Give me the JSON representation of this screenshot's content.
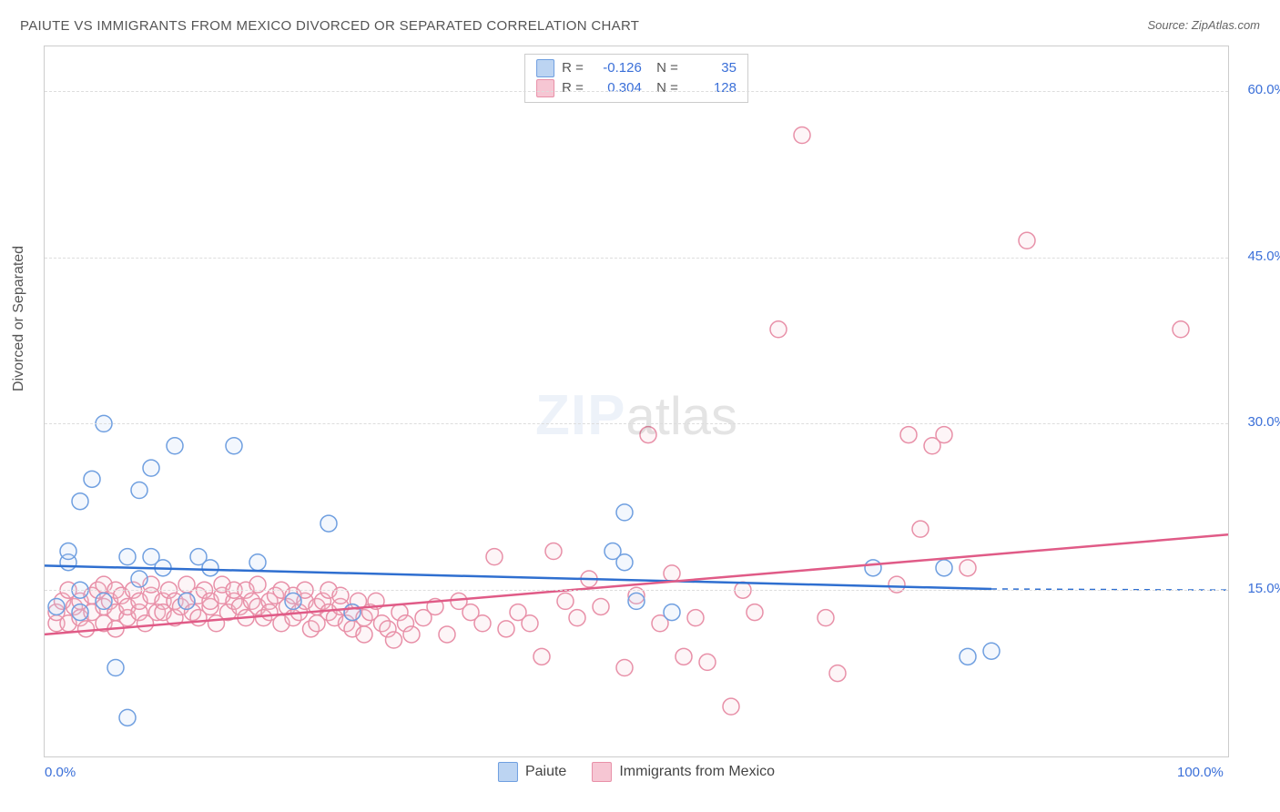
{
  "header": {
    "title": "PAIUTE VS IMMIGRANTS FROM MEXICO DIVORCED OR SEPARATED CORRELATION CHART",
    "source": "Source: ZipAtlas.com"
  },
  "chart": {
    "type": "scatter",
    "xlim": [
      0,
      100
    ],
    "ylim": [
      0,
      64
    ],
    "xticks": [
      {
        "v": 0,
        "label": "0.0%"
      },
      {
        "v": 100,
        "label": "100.0%"
      }
    ],
    "yticks": [
      {
        "v": 15,
        "label": "15.0%"
      },
      {
        "v": 30,
        "label": "30.0%"
      },
      {
        "v": 45,
        "label": "45.0%"
      },
      {
        "v": 60,
        "label": "60.0%"
      }
    ],
    "ylabel": "Divorced or Separated",
    "grid_color": "#dddddd",
    "grid_dash": true,
    "background": "#ffffff",
    "marker_radius": 9,
    "marker_stroke_width": 1.5,
    "marker_fill_opacity": 0.18,
    "trend_line_width": 2.5,
    "series": {
      "paiute": {
        "label": "Paiute",
        "color": "#6f9fe0",
        "fill": "#bcd4f2",
        "line": "#2f6fd0",
        "R": "-0.126",
        "N": "35",
        "trend": {
          "x1": 0,
          "y1": 17.2,
          "x2": 80,
          "y2": 15.1,
          "dash_after": true,
          "dash_to_x": 100,
          "dash_y": 15.0
        },
        "points": [
          [
            1,
            13.5
          ],
          [
            2,
            17.5
          ],
          [
            2,
            18.5
          ],
          [
            3,
            13
          ],
          [
            3,
            15
          ],
          [
            3,
            23
          ],
          [
            4,
            25
          ],
          [
            5,
            30
          ],
          [
            5,
            14
          ],
          [
            6,
            8
          ],
          [
            7,
            3.5
          ],
          [
            7,
            18
          ],
          [
            8,
            16
          ],
          [
            8,
            24
          ],
          [
            9,
            18
          ],
          [
            9,
            26
          ],
          [
            10,
            17
          ],
          [
            11,
            28
          ],
          [
            12,
            14
          ],
          [
            13,
            18
          ],
          [
            14,
            17
          ],
          [
            16,
            28
          ],
          [
            18,
            17.5
          ],
          [
            21,
            14
          ],
          [
            24,
            21
          ],
          [
            26,
            13
          ],
          [
            48,
            18.5
          ],
          [
            49,
            17.5
          ],
          [
            49,
            22
          ],
          [
            50,
            14
          ],
          [
            53,
            13
          ],
          [
            70,
            17
          ],
          [
            76,
            17
          ],
          [
            78,
            9
          ],
          [
            80,
            9.5
          ]
        ]
      },
      "mexico": {
        "label": "Immigants from Mexico",
        "label_fix": "Immigrants from Mexico",
        "color": "#e890a8",
        "fill": "#f6c6d3",
        "line": "#e05b87",
        "R": "0.304",
        "N": "128",
        "trend": {
          "x1": 0,
          "y1": 11,
          "x2": 100,
          "y2": 20
        },
        "points": [
          [
            1,
            12
          ],
          [
            1,
            13
          ],
          [
            1.5,
            14
          ],
          [
            2,
            12
          ],
          [
            2,
            15
          ],
          [
            2.5,
            13.5
          ],
          [
            3,
            12.5
          ],
          [
            3,
            14
          ],
          [
            3.5,
            11.5
          ],
          [
            4,
            13
          ],
          [
            4,
            14.5
          ],
          [
            4.5,
            15
          ],
          [
            5,
            12
          ],
          [
            5,
            13.5
          ],
          [
            5,
            15.5
          ],
          [
            5.5,
            14
          ],
          [
            6,
            11.5
          ],
          [
            6,
            13
          ],
          [
            6,
            15
          ],
          [
            6.5,
            14.5
          ],
          [
            7,
            12.5
          ],
          [
            7,
            13.5
          ],
          [
            7.5,
            15
          ],
          [
            8,
            13
          ],
          [
            8,
            14
          ],
          [
            8.5,
            12
          ],
          [
            9,
            14.5
          ],
          [
            9,
            15.5
          ],
          [
            9.5,
            13
          ],
          [
            10,
            14
          ],
          [
            10,
            13
          ],
          [
            10.5,
            15
          ],
          [
            11,
            12.5
          ],
          [
            11,
            14
          ],
          [
            11.5,
            13.5
          ],
          [
            12,
            15.5
          ],
          [
            12,
            14
          ],
          [
            12.5,
            13
          ],
          [
            13,
            14.5
          ],
          [
            13,
            12.5
          ],
          [
            13.5,
            15
          ],
          [
            14,
            13.5
          ],
          [
            14,
            14
          ],
          [
            14.5,
            12
          ],
          [
            15,
            14.5
          ],
          [
            15,
            15.5
          ],
          [
            15.5,
            13
          ],
          [
            16,
            14
          ],
          [
            16,
            15
          ],
          [
            16.5,
            13.5
          ],
          [
            17,
            12.5
          ],
          [
            17,
            15
          ],
          [
            17.5,
            14
          ],
          [
            18,
            13.5
          ],
          [
            18,
            15.5
          ],
          [
            18.5,
            12.5
          ],
          [
            19,
            14
          ],
          [
            19,
            13
          ],
          [
            19.5,
            14.5
          ],
          [
            20,
            15
          ],
          [
            20,
            12
          ],
          [
            20.5,
            13.5
          ],
          [
            21,
            14.5
          ],
          [
            21,
            12.5
          ],
          [
            21.5,
            13
          ],
          [
            22,
            14
          ],
          [
            22,
            15
          ],
          [
            22.5,
            11.5
          ],
          [
            23,
            13.5
          ],
          [
            23,
            12
          ],
          [
            23.5,
            14
          ],
          [
            24,
            15
          ],
          [
            24,
            13
          ],
          [
            24.5,
            12.5
          ],
          [
            25,
            13.5
          ],
          [
            25,
            14.5
          ],
          [
            25.5,
            12
          ],
          [
            26,
            13
          ],
          [
            26,
            11.5
          ],
          [
            26.5,
            14
          ],
          [
            27,
            12.5
          ],
          [
            27,
            11
          ],
          [
            27.5,
            13
          ],
          [
            28,
            14
          ],
          [
            28.5,
            12
          ],
          [
            29,
            11.5
          ],
          [
            29.5,
            10.5
          ],
          [
            30,
            13
          ],
          [
            30.5,
            12
          ],
          [
            31,
            11
          ],
          [
            32,
            12.5
          ],
          [
            33,
            13.5
          ],
          [
            34,
            11
          ],
          [
            35,
            14
          ],
          [
            36,
            13
          ],
          [
            37,
            12
          ],
          [
            38,
            18
          ],
          [
            39,
            11.5
          ],
          [
            40,
            13
          ],
          [
            41,
            12
          ],
          [
            42,
            9
          ],
          [
            43,
            18.5
          ],
          [
            44,
            14
          ],
          [
            45,
            12.5
          ],
          [
            46,
            16
          ],
          [
            47,
            13.5
          ],
          [
            49,
            8
          ],
          [
            50,
            14.5
          ],
          [
            51,
            29
          ],
          [
            52,
            12
          ],
          [
            53,
            16.5
          ],
          [
            54,
            9
          ],
          [
            55,
            12.5
          ],
          [
            56,
            8.5
          ],
          [
            58,
            4.5
          ],
          [
            59,
            15
          ],
          [
            60,
            13
          ],
          [
            62,
            38.5
          ],
          [
            64,
            56
          ],
          [
            66,
            12.5
          ],
          [
            67,
            7.5
          ],
          [
            72,
            15.5
          ],
          [
            73,
            29
          ],
          [
            74,
            20.5
          ],
          [
            75,
            28
          ],
          [
            76,
            29
          ],
          [
            78,
            17
          ],
          [
            83,
            46.5
          ],
          [
            96,
            38.5
          ]
        ]
      }
    },
    "watermark": {
      "zip": "ZIP",
      "atlas": "atlas"
    }
  },
  "legend_bottom": [
    {
      "key": "paiute",
      "label": "Paiute"
    },
    {
      "key": "mexico",
      "label": "Immigrants from Mexico"
    }
  ]
}
